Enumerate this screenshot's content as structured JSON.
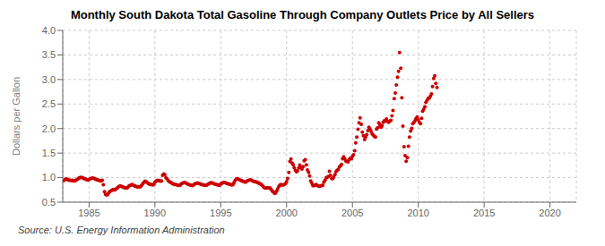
{
  "chart_data": {
    "type": "scatter",
    "title": "Monthly South Dakota Total Gasoline Through Company Outlets Price by All Sellers",
    "ylabel": "Dollars per Gallon",
    "source": "Source: U.S. Energy Information Administration",
    "color": "#cc0000",
    "grid": true,
    "xlim": [
      1983,
      2022
    ],
    "ylim": [
      0.5,
      4.0
    ],
    "xticks": [
      1985,
      1990,
      1995,
      2000,
      2005,
      2010,
      2015,
      2020
    ],
    "yticks": [
      0.5,
      {
        "value": 1.0,
        "label": "1.0"
      },
      1.5,
      {
        "value": 2.0,
        "label": "2.0"
      },
      2.5,
      {
        "value": 3.0,
        "label": "3.0"
      },
      3.5,
      {
        "value": 4.0,
        "label": "4.0"
      }
    ],
    "x": [
      1983.08,
      1983.17,
      1983.25,
      1983.33,
      1983.42,
      1983.5,
      1983.58,
      1983.67,
      1983.75,
      1983.83,
      1983.92,
      1984.0,
      1984.08,
      1984.17,
      1984.25,
      1984.33,
      1984.42,
      1984.5,
      1984.58,
      1984.67,
      1984.75,
      1984.83,
      1984.92,
      1985.0,
      1985.08,
      1985.17,
      1985.25,
      1985.33,
      1985.42,
      1985.5,
      1985.58,
      1985.67,
      1985.75,
      1985.83,
      1985.92,
      1986.0,
      1986.08,
      1986.17,
      1986.25,
      1986.33,
      1986.42,
      1986.5,
      1986.58,
      1986.67,
      1986.75,
      1986.83,
      1986.92,
      1987.0,
      1987.08,
      1987.17,
      1987.25,
      1987.33,
      1987.42,
      1987.5,
      1987.58,
      1987.67,
      1987.75,
      1987.83,
      1987.92,
      1988.0,
      1988.08,
      1988.17,
      1988.25,
      1988.33,
      1988.42,
      1988.5,
      1988.58,
      1988.67,
      1988.75,
      1988.83,
      1988.92,
      1989.0,
      1989.08,
      1989.17,
      1989.25,
      1989.33,
      1989.42,
      1989.5,
      1989.58,
      1989.67,
      1989.75,
      1989.83,
      1989.92,
      1990.0,
      1990.08,
      1990.17,
      1990.25,
      1990.33,
      1990.42,
      1990.5,
      1990.58,
      1990.67,
      1990.75,
      1990.83,
      1990.92,
      1991.0,
      1991.08,
      1991.17,
      1991.25,
      1991.33,
      1991.42,
      1991.5,
      1991.58,
      1991.67,
      1991.75,
      1991.83,
      1991.92,
      1992.0,
      1992.08,
      1992.17,
      1992.25,
      1992.33,
      1992.42,
      1992.5,
      1992.58,
      1992.67,
      1992.75,
      1992.83,
      1992.92,
      1993.0,
      1993.08,
      1993.17,
      1993.25,
      1993.33,
      1993.42,
      1993.5,
      1993.58,
      1993.67,
      1993.75,
      1993.83,
      1993.92,
      1994.0,
      1994.08,
      1994.17,
      1994.25,
      1994.33,
      1994.42,
      1994.5,
      1994.58,
      1994.67,
      1994.75,
      1994.83,
      1994.92,
      1995.0,
      1995.08,
      1995.17,
      1995.25,
      1995.33,
      1995.42,
      1995.5,
      1995.58,
      1995.67,
      1995.75,
      1995.83,
      1995.92,
      1996.0,
      1996.08,
      1996.17,
      1996.25,
      1996.33,
      1996.42,
      1996.5,
      1996.58,
      1996.67,
      1996.75,
      1996.83,
      1996.92,
      1997.0,
      1997.08,
      1997.17,
      1997.25,
      1997.33,
      1997.42,
      1997.5,
      1997.58,
      1997.67,
      1997.75,
      1997.83,
      1997.92,
      1998.0,
      1998.08,
      1998.17,
      1998.25,
      1998.33,
      1998.42,
      1998.5,
      1998.58,
      1998.67,
      1998.75,
      1998.83,
      1998.92,
      1999.0,
      1999.08,
      1999.17,
      1999.25,
      1999.33,
      1999.42,
      1999.5,
      1999.58,
      1999.67,
      1999.75,
      1999.83,
      1999.92,
      2000.0,
      2000.08,
      2000.17,
      2000.25,
      2000.33,
      2000.42,
      2000.5,
      2000.58,
      2000.67,
      2000.75,
      2000.83,
      2000.92,
      2001.0,
      2001.08,
      2001.17,
      2001.25,
      2001.33,
      2001.42,
      2001.5,
      2001.58,
      2001.67,
      2001.75,
      2001.83,
      2001.92,
      2002.0,
      2002.08,
      2002.17,
      2002.25,
      2002.33,
      2002.42,
      2002.5,
      2002.58,
      2002.67,
      2002.75,
      2002.83,
      2002.92,
      2003.0,
      2003.08,
      2003.17,
      2003.25,
      2003.33,
      2003.42,
      2003.5,
      2003.58,
      2003.67,
      2003.75,
      2003.83,
      2003.92,
      2004.0,
      2004.08,
      2004.17,
      2004.25,
      2004.33,
      2004.42,
      2004.5,
      2004.58,
      2004.67,
      2004.75,
      2004.83,
      2004.92,
      2005.0,
      2005.08,
      2005.17,
      2005.25,
      2005.33,
      2005.42,
      2005.5,
      2005.58,
      2005.67,
      2005.75,
      2005.83,
      2005.92,
      2006.0,
      2006.08,
      2006.17,
      2006.25,
      2006.33,
      2006.42,
      2006.5,
      2006.58,
      2006.67,
      2006.75,
      2006.83,
      2006.92,
      2007.0,
      2007.08,
      2007.17,
      2007.25,
      2007.33,
      2007.42,
      2007.5,
      2007.58,
      2007.67,
      2007.75,
      2007.83,
      2007.92,
      2008.0,
      2008.08,
      2008.17,
      2008.25,
      2008.33,
      2008.42,
      2008.5,
      2008.58,
      2008.67,
      2008.75,
      2008.83,
      2008.92,
      2009.0,
      2009.08,
      2009.17,
      2009.25,
      2009.33,
      2009.42,
      2009.5,
      2009.58,
      2009.67,
      2009.75,
      2009.83,
      2009.92,
      2010.0,
      2010.08,
      2010.17,
      2010.25,
      2010.33,
      2010.42,
      2010.5,
      2010.58,
      2010.67,
      2010.75,
      2010.83,
      2010.92,
      2011.0,
      2011.08,
      2011.17,
      2011.25,
      2011.33,
      2011.42
    ],
    "values": [
      0.94,
      0.958,
      0.972,
      0.968,
      0.952,
      0.945,
      0.948,
      0.942,
      0.945,
      0.935,
      0.932,
      0.945,
      0.962,
      0.978,
      0.995,
      1.002,
      1.005,
      0.998,
      0.988,
      0.975,
      0.968,
      0.958,
      0.952,
      0.962,
      0.978,
      0.985,
      0.992,
      0.988,
      0.978,
      0.968,
      0.958,
      0.952,
      0.948,
      0.938,
      0.935,
      0.945,
      0.855,
      0.715,
      0.66,
      0.645,
      0.66,
      0.695,
      0.718,
      0.732,
      0.748,
      0.758,
      0.748,
      0.762,
      0.778,
      0.795,
      0.815,
      0.828,
      0.828,
      0.815,
      0.808,
      0.798,
      0.792,
      0.785,
      0.798,
      0.825,
      0.835,
      0.848,
      0.858,
      0.852,
      0.838,
      0.828,
      0.818,
      0.812,
      0.815,
      0.808,
      0.818,
      0.848,
      0.878,
      0.905,
      0.928,
      0.918,
      0.898,
      0.878,
      0.868,
      0.862,
      0.858,
      0.852,
      0.862,
      0.905,
      0.928,
      0.942,
      0.948,
      0.938,
      0.928,
      0.932,
      1.045,
      1.072,
      1.062,
      0.998,
      0.978,
      0.942,
      0.918,
      0.905,
      0.895,
      0.878,
      0.868,
      0.858,
      0.858,
      0.852,
      0.848,
      0.842,
      0.848,
      0.872,
      0.882,
      0.895,
      0.902,
      0.892,
      0.878,
      0.868,
      0.858,
      0.852,
      0.848,
      0.838,
      0.845,
      0.868,
      0.878,
      0.888,
      0.892,
      0.882,
      0.872,
      0.862,
      0.858,
      0.852,
      0.848,
      0.842,
      0.845,
      0.862,
      0.875,
      0.888,
      0.898,
      0.892,
      0.882,
      0.872,
      0.865,
      0.858,
      0.855,
      0.845,
      0.848,
      0.872,
      0.885,
      0.898,
      0.905,
      0.898,
      0.888,
      0.878,
      0.872,
      0.865,
      0.862,
      0.852,
      0.855,
      0.895,
      0.938,
      0.968,
      0.978,
      0.968,
      0.958,
      0.948,
      0.938,
      0.928,
      0.918,
      0.908,
      0.912,
      0.932,
      0.942,
      0.952,
      0.958,
      0.948,
      0.935,
      0.925,
      0.918,
      0.912,
      0.908,
      0.898,
      0.885,
      0.875,
      0.858,
      0.835,
      0.812,
      0.792,
      0.785,
      0.788,
      0.792,
      0.788,
      0.785,
      0.762,
      0.722,
      0.708,
      0.682,
      0.688,
      0.728,
      0.775,
      0.825,
      0.852,
      0.858,
      0.852,
      0.852,
      0.858,
      0.878,
      0.918,
      0.985,
      1.108,
      1.328,
      1.378,
      1.298,
      1.262,
      1.202,
      1.148,
      1.118,
      1.138,
      1.195,
      1.258,
      1.208,
      1.175,
      1.225,
      1.342,
      1.368,
      1.262,
      1.155,
      1.108,
      1.032,
      0.935,
      0.882,
      0.838,
      0.838,
      0.848,
      0.858,
      0.838,
      0.832,
      0.825,
      0.832,
      0.835,
      0.845,
      0.908,
      0.948,
      0.995,
      1.008,
      1.025,
      1.128,
      1.048,
      0.985,
      0.978,
      1.012,
      1.062,
      1.118,
      1.145,
      1.165,
      1.215,
      1.238,
      1.272,
      1.382,
      1.425,
      1.378,
      1.338,
      1.328,
      1.322,
      1.365,
      1.395,
      1.382,
      1.435,
      1.468,
      1.548,
      1.708,
      1.825,
      1.985,
      2.118,
      2.218,
      2.088,
      1.928,
      1.852,
      1.778,
      1.828,
      1.878,
      1.958,
      2.028,
      1.988,
      1.942,
      1.892,
      1.865,
      1.842,
      1.828,
      1.988,
      2.018,
      2.118,
      2.078,
      2.028,
      2.058,
      2.128,
      2.158,
      2.148,
      2.195,
      2.148,
      2.128,
      2.152,
      2.168,
      2.258,
      2.368,
      2.608,
      2.722,
      2.888,
      3.048,
      3.168,
      3.548,
      3.228,
      2.628,
      2.048,
      1.628,
      1.448,
      1.335,
      1.408,
      1.638,
      1.825,
      1.948,
      2.005,
      2.098,
      2.125,
      2.158,
      2.205,
      2.238,
      2.175,
      2.128,
      2.098,
      2.208,
      2.355,
      2.395,
      2.445,
      2.535,
      2.578,
      2.618,
      2.618,
      2.658,
      2.708,
      2.858,
      3.018,
      3.075,
      2.918,
      2.838
    ]
  }
}
